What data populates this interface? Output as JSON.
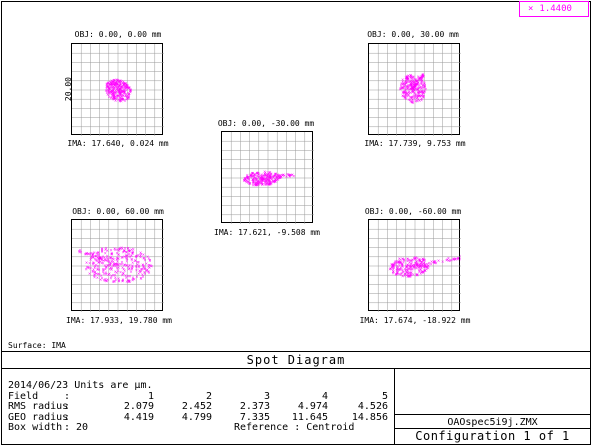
{
  "wavelength": {
    "value": "1.4400",
    "color": "#ff00ff",
    "marker": "x-marker-icon"
  },
  "scale_label": "20.00",
  "surface_label": "Surface: IMA",
  "spots": [
    {
      "id": "field1",
      "obj": "OBJ: 0.00, 0.00 mm",
      "ima": "IMA: 17.640, 0.024 mm"
    },
    {
      "id": "field2",
      "obj": "OBJ: 0.00, 30.00 mm",
      "ima": "IMA: 17.739, 9.753 mm"
    },
    {
      "id": "field3",
      "obj": "OBJ: 0.00, -30.00 mm",
      "ima": "IMA: 17.621, -9.508 mm"
    },
    {
      "id": "field4",
      "obj": "OBJ: 0.00, 60.00 mm",
      "ima": "IMA: 17.933, 19.780 mm"
    },
    {
      "id": "field5",
      "obj": "OBJ: 0.00, -60.00 mm",
      "ima": "IMA: 17.674, -18.922 mm"
    }
  ],
  "title": "Spot Diagram",
  "info": {
    "date_units": "2014/06/23  Units are µm.",
    "field_label": "Field",
    "fields": [
      "1",
      "2",
      "3",
      "4",
      "5"
    ],
    "rms_label": "RMS radius",
    "rms": [
      "2.079",
      "2.452",
      "2.373",
      "4.974",
      "4.526"
    ],
    "geo_label": "GEO radius",
    "geo": [
      "4.419",
      "4.799",
      "7.335",
      "11.645",
      "14.856"
    ],
    "box_label": "Box width",
    "box_value": ": 20",
    "reference": "Reference  : Centroid"
  },
  "filename": "OAOspec5i9j.ZMX",
  "configuration": "Configuration 1 of 1"
}
